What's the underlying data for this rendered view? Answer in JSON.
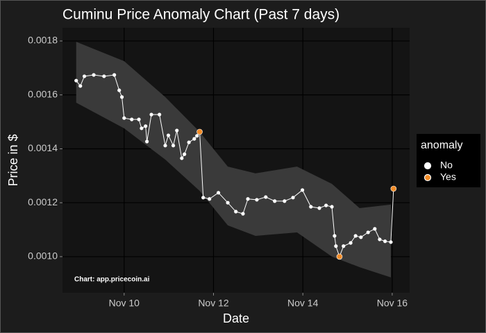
{
  "chart_data": {
    "type": "line",
    "title": "Cuminu Price Anomaly Chart (Past 7 days)",
    "x_label": "Date",
    "y_label": "Price in $",
    "caption": "Chart: app.pricecoin.ai",
    "x": [
      8.927,
      9.02,
      9.11,
      9.32,
      9.55,
      9.78,
      9.89,
      9.95,
      10.0,
      10.17,
      10.33,
      10.39,
      10.48,
      10.51,
      10.61,
      10.79,
      10.92,
      10.99,
      11.1,
      11.18,
      11.29,
      11.35,
      11.45,
      11.57,
      11.63,
      11.69,
      11.77,
      11.91,
      12.11,
      12.32,
      12.5,
      12.66,
      12.77,
      12.97,
      13.17,
      13.37,
      13.59,
      13.78,
      13.99,
      14.18,
      14.37,
      14.52,
      14.65,
      14.71,
      14.74,
      14.82,
      14.91,
      15.07,
      15.18,
      15.3,
      15.46,
      15.61,
      15.72,
      15.84,
      15.97,
      16.03
    ],
    "values": [
      0.001653,
      0.001633,
      0.001669,
      0.001674,
      0.001669,
      0.001674,
      0.001617,
      0.001592,
      0.001514,
      0.001509,
      0.001509,
      0.001476,
      0.001484,
      0.001427,
      0.001527,
      0.001527,
      0.001412,
      0.00145,
      0.001412,
      0.001468,
      0.001365,
      0.00138,
      0.001424,
      0.001437,
      0.001448,
      0.001463,
      0.001219,
      0.001214,
      0.001237,
      0.0012,
      0.001167,
      0.001159,
      0.001214,
      0.001211,
      0.001221,
      0.001206,
      0.001206,
      0.001219,
      0.001247,
      0.001185,
      0.00118,
      0.00119,
      0.001185,
      0.001077,
      0.001039,
      0.001,
      0.001039,
      0.001051,
      0.001077,
      0.001072,
      0.00109,
      0.001103,
      0.001064,
      0.001057,
      0.001054,
      0.001252
    ],
    "anomaly": [
      false,
      false,
      false,
      false,
      false,
      false,
      false,
      false,
      false,
      false,
      false,
      false,
      false,
      false,
      false,
      false,
      false,
      false,
      false,
      false,
      false,
      false,
      false,
      false,
      false,
      true,
      false,
      false,
      false,
      false,
      false,
      false,
      false,
      false,
      false,
      false,
      false,
      false,
      false,
      false,
      false,
      false,
      false,
      false,
      false,
      true,
      false,
      false,
      false,
      false,
      false,
      false,
      false,
      false,
      false,
      true
    ],
    "band": {
      "x": [
        8.927,
        10.0,
        10.92,
        11.69,
        12.32,
        12.94,
        13.87,
        14.65,
        15.27,
        15.97
      ],
      "upper": [
        0.001797,
        0.001725,
        0.001592,
        0.001463,
        0.001334,
        0.001309,
        0.001334,
        0.00127,
        0.00118,
        0.001193
      ],
      "lower": [
        0.001571,
        0.001476,
        0.00136,
        0.001244,
        0.001116,
        0.001077,
        0.00109,
        0.001,
        0.000961,
        0.000923
      ],
      "color": "#3a3a3a"
    },
    "line_color": "#ffffff",
    "legend": {
      "title": "anomaly",
      "entries": [
        {
          "name": "No",
          "color": "#ffffff"
        },
        {
          "name": "Yes",
          "color": "#f28c28"
        }
      ]
    },
    "xlim": [
      8.62,
      16.39
    ],
    "xticks": [
      {
        "value": 10,
        "label": "Nov 10"
      },
      {
        "value": 12,
        "label": "Nov 12"
      },
      {
        "value": 14,
        "label": "Nov 14"
      },
      {
        "value": 16,
        "label": "Nov 16"
      }
    ],
    "ylim": [
      0.000866,
      0.001849
    ],
    "yticks": [
      {
        "value": 0.001,
        "label": "0.0010"
      },
      0.0012,
      0.0014,
      0.0016,
      0.0018
    ],
    "grid": true
  }
}
